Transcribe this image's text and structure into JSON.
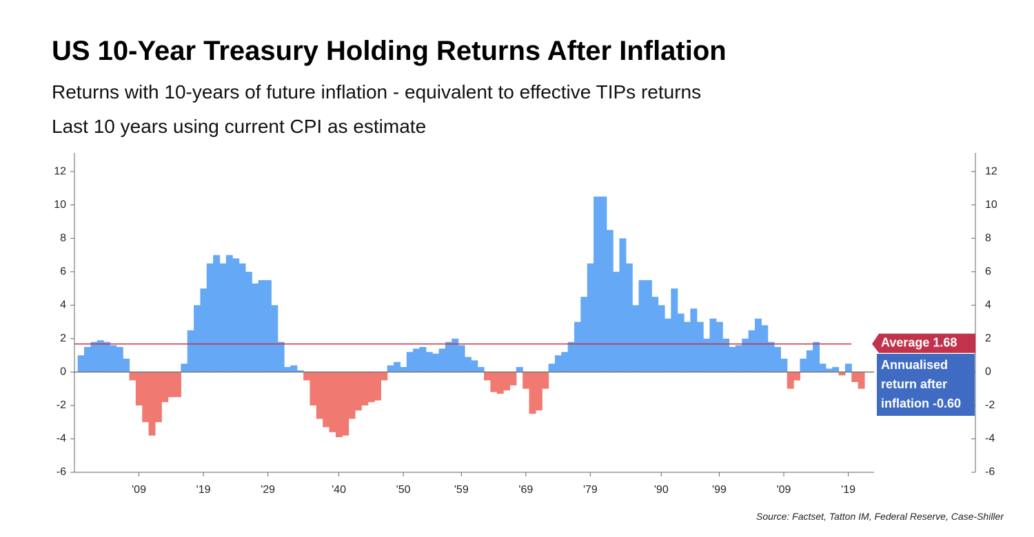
{
  "chart_data": {
    "type": "bar",
    "title": "US 10-Year Treasury Holding Returns After Inflation",
    "subtitle": [
      "Returns with 10-years of future inflation - equivalent to effective TIPs returns",
      "Last 10 years using current CPI as estimate"
    ],
    "source": "Source: Factset, Tatton IM, Federal Reserve, Case-Shiller",
    "x": [
      1900,
      1901,
      1902,
      1903,
      1904,
      1905,
      1906,
      1907,
      1908,
      1909,
      1910,
      1911,
      1912,
      1913,
      1914,
      1915,
      1916,
      1917,
      1918,
      1919,
      1920,
      1921,
      1922,
      1923,
      1924,
      1925,
      1926,
      1927,
      1928,
      1929,
      1930,
      1931,
      1932,
      1933,
      1934,
      1935,
      1936,
      1937,
      1938,
      1939,
      1940,
      1941,
      1942,
      1943,
      1944,
      1945,
      1946,
      1947,
      1948,
      1949,
      1950,
      1951,
      1952,
      1953,
      1954,
      1955,
      1956,
      1957,
      1958,
      1959,
      1960,
      1961,
      1962,
      1963,
      1964,
      1965,
      1966,
      1967,
      1968,
      1969,
      1970,
      1971,
      1972,
      1973,
      1974,
      1975,
      1976,
      1977,
      1978,
      1979,
      1980,
      1981,
      1982,
      1983,
      1984,
      1985,
      1986,
      1987,
      1988,
      1989,
      1990,
      1991,
      1992,
      1993,
      1994,
      1995,
      1996,
      1997,
      1998,
      1999,
      2000,
      2001,
      2002,
      2003,
      2004,
      2005,
      2006,
      2007,
      2008,
      2009,
      2010,
      2011,
      2012,
      2013,
      2014,
      2015,
      2016,
      2017,
      2018,
      2019,
      2020,
      2021
    ],
    "values": [
      1.0,
      1.5,
      1.8,
      1.9,
      1.8,
      1.6,
      1.5,
      0.8,
      -0.5,
      -2.0,
      -3.0,
      -3.8,
      -3.0,
      -1.8,
      -1.5,
      -1.5,
      0.5,
      2.5,
      4.0,
      5.0,
      6.5,
      7.0,
      6.5,
      7.0,
      6.8,
      6.5,
      6.0,
      5.3,
      5.5,
      5.5,
      4.0,
      1.8,
      0.3,
      0.4,
      0.1,
      -0.5,
      -2.0,
      -2.8,
      -3.3,
      -3.6,
      -3.9,
      -3.8,
      -2.8,
      -2.3,
      -2.0,
      -1.8,
      -1.7,
      -0.5,
      0.4,
      0.6,
      0.3,
      1.2,
      1.4,
      1.5,
      1.2,
      1.1,
      1.4,
      1.8,
      2.0,
      1.6,
      0.9,
      0.7,
      0.3,
      -0.5,
      -1.2,
      -1.3,
      -1.1,
      -0.8,
      0.3,
      -1.0,
      -2.5,
      -2.3,
      -1.0,
      0.5,
      1.0,
      1.2,
      1.8,
      3.0,
      4.5,
      6.5,
      10.5,
      10.5,
      8.5,
      6.0,
      8.0,
      6.5,
      4.0,
      5.5,
      5.5,
      4.5,
      4.0,
      3.2,
      5.0,
      3.5,
      3.0,
      3.8,
      3.0,
      2.0,
      3.2,
      3.0,
      2.0,
      1.5,
      1.6,
      2.0,
      2.5,
      3.2,
      2.8,
      1.8,
      1.5,
      0.8,
      -1.0,
      -0.5,
      0.8,
      1.3,
      1.8,
      0.5,
      0.2,
      0.3,
      -0.2,
      0.5,
      -0.6,
      -1.0
    ],
    "positive_color": "#64a8f6",
    "negative_color": "#f07a72",
    "xlim": [
      1899,
      2023
    ],
    "xticks": [
      {
        "value": 1909,
        "label": "'09"
      },
      {
        "value": 1919,
        "label": "'19"
      },
      {
        "value": 1929,
        "label": "'29"
      },
      {
        "value": 1940,
        "label": "'40"
      },
      {
        "value": 1950,
        "label": "'50"
      },
      {
        "value": 1959,
        "label": "'59"
      },
      {
        "value": 1969,
        "label": "'69"
      },
      {
        "value": 1979,
        "label": "'79"
      },
      {
        "value": 1990,
        "label": "'90"
      },
      {
        "value": 1999,
        "label": "'99"
      },
      {
        "value": 2009,
        "label": "'09"
      },
      {
        "value": 2019,
        "label": "'19"
      }
    ],
    "ylim": [
      -6,
      12.5
    ],
    "yticks": [
      -6,
      -4,
      -2,
      0,
      2,
      4,
      6,
      8,
      10,
      12
    ],
    "y2lim": [
      -6,
      12.5
    ],
    "y2ticks": [
      -6,
      -4,
      -2,
      0,
      2,
      4,
      6,
      8,
      10,
      12
    ],
    "average": 1.68,
    "average_color": "#c0334a",
    "annotations": [
      "Average 1.68",
      "Annualised return after inflation -0.60"
    ]
  }
}
